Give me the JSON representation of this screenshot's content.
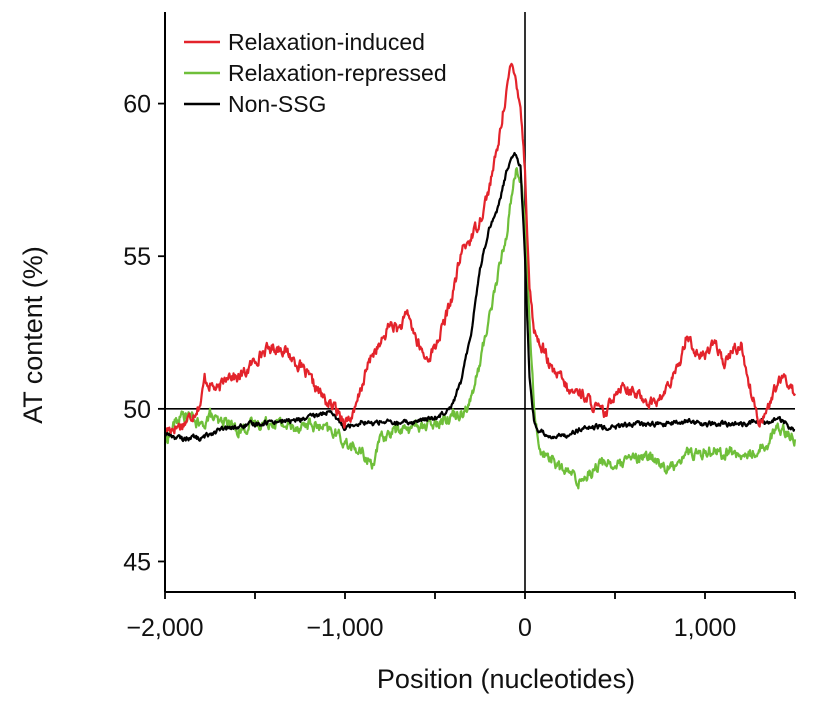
{
  "chart_data": {
    "type": "line",
    "title": "",
    "xlabel": "Position (nucleotides)",
    "ylabel": "AT content (%)",
    "xlim": [
      -2000,
      1500
    ],
    "ylim": [
      44,
      63
    ],
    "x_ticks": [
      -2000,
      -1500,
      -1000,
      -500,
      0,
      500,
      1000,
      1500
    ],
    "x_tick_labels": [
      {
        "value": -2000,
        "label": "−2,000"
      },
      {
        "value": -1000,
        "label": "−1,000"
      },
      {
        "value": 0,
        "label": "0"
      },
      {
        "value": 1000,
        "label": "1,000"
      }
    ],
    "y_ticks": [
      45,
      50,
      55,
      60
    ],
    "y_tick_labels": [
      "45",
      "50",
      "55",
      "60"
    ],
    "reference_lines": {
      "horizontal": 50,
      "vertical": 0
    },
    "legend_position": "top-left",
    "series": [
      {
        "name": "Relaxation-induced",
        "color": "#e3232b",
        "x": [
          -2000,
          -1900,
          -1850,
          -1800,
          -1780,
          -1750,
          -1700,
          -1650,
          -1600,
          -1550,
          -1500,
          -1450,
          -1400,
          -1350,
          -1300,
          -1250,
          -1200,
          -1150,
          -1100,
          -1050,
          -1000,
          -950,
          -900,
          -850,
          -800,
          -750,
          -700,
          -650,
          -600,
          -550,
          -500,
          -450,
          -400,
          -350,
          -300,
          -250,
          -200,
          -150,
          -100,
          -75,
          -50,
          -25,
          0,
          25,
          50,
          75,
          100,
          150,
          200,
          250,
          300,
          350,
          400,
          450,
          500,
          550,
          600,
          650,
          700,
          750,
          800,
          850,
          900,
          950,
          1000,
          1050,
          1100,
          1150,
          1200,
          1250,
          1300,
          1350,
          1400,
          1450,
          1500
        ],
        "values": [
          49.3,
          49.5,
          49.8,
          50.2,
          51.0,
          50.8,
          50.6,
          51.2,
          51.0,
          51.2,
          51.6,
          51.9,
          52.0,
          52.0,
          51.7,
          51.4,
          51.0,
          50.6,
          50.2,
          50.0,
          49.6,
          49.8,
          50.9,
          51.8,
          52.1,
          52.8,
          52.6,
          53.1,
          52.2,
          51.6,
          52.0,
          52.8,
          53.8,
          55.2,
          55.6,
          56.2,
          57.2,
          58.6,
          60.6,
          61.2,
          60.8,
          60.0,
          57.8,
          54.0,
          52.6,
          52.2,
          52.0,
          51.2,
          51.0,
          50.5,
          50.6,
          50.3,
          50.0,
          49.8,
          50.6,
          50.8,
          50.5,
          50.4,
          50.2,
          50.3,
          50.8,
          51.3,
          52.5,
          51.8,
          51.7,
          52.3,
          51.4,
          51.9,
          52.1,
          50.7,
          49.6,
          50.0,
          50.8,
          51.0,
          50.5
        ]
      },
      {
        "name": "Relaxation-repressed",
        "color": "#6fbf3a",
        "x": [
          -2000,
          -1950,
          -1900,
          -1850,
          -1800,
          -1750,
          -1700,
          -1650,
          -1600,
          -1500,
          -1400,
          -1300,
          -1200,
          -1100,
          -1050,
          -1000,
          -950,
          -900,
          -850,
          -800,
          -750,
          -700,
          -650,
          -600,
          -550,
          -500,
          -450,
          -400,
          -350,
          -300,
          -250,
          -200,
          -150,
          -100,
          -75,
          -50,
          -25,
          0,
          25,
          50,
          75,
          100,
          150,
          200,
          250,
          300,
          350,
          400,
          450,
          500,
          550,
          600,
          650,
          700,
          750,
          800,
          850,
          900,
          950,
          1000,
          1050,
          1100,
          1150,
          1200,
          1250,
          1300,
          1350,
          1400,
          1450,
          1500
        ],
        "values": [
          48.9,
          49.5,
          49.8,
          49.7,
          49.4,
          49.8,
          49.5,
          49.6,
          49.3,
          49.5,
          49.6,
          49.4,
          49.5,
          49.3,
          49.2,
          48.9,
          48.7,
          48.5,
          48.2,
          49.0,
          49.2,
          49.4,
          49.3,
          49.5,
          49.4,
          49.6,
          49.7,
          49.8,
          49.9,
          50.3,
          51.5,
          53.0,
          54.4,
          55.8,
          57.0,
          57.8,
          57.6,
          56.0,
          52.8,
          50.2,
          48.8,
          48.5,
          48.4,
          48.0,
          47.9,
          47.6,
          47.9,
          48.1,
          48.3,
          48.1,
          48.2,
          48.4,
          48.3,
          48.5,
          48.2,
          48.0,
          48.3,
          48.6,
          48.5,
          48.6,
          48.7,
          48.5,
          48.6,
          48.4,
          48.5,
          48.7,
          48.9,
          49.4,
          49.3,
          49.0
        ]
      },
      {
        "name": "Non-SSG",
        "color": "#000000",
        "x": [
          -2000,
          -1950,
          -1900,
          -1850,
          -1800,
          -1750,
          -1700,
          -1600,
          -1500,
          -1400,
          -1300,
          -1200,
          -1150,
          -1100,
          -1050,
          -1000,
          -950,
          -900,
          -850,
          -800,
          -700,
          -600,
          -500,
          -450,
          -400,
          -350,
          -300,
          -250,
          -200,
          -150,
          -100,
          -75,
          -50,
          -25,
          0,
          25,
          50,
          75,
          100,
          150,
          200,
          250,
          300,
          400,
          500,
          600,
          700,
          800,
          900,
          1000,
          1100,
          1200,
          1300,
          1350,
          1400,
          1450,
          1500
        ],
        "values": [
          49.2,
          49.1,
          49.0,
          49.1,
          49.0,
          49.2,
          49.3,
          49.4,
          49.5,
          49.6,
          49.6,
          49.7,
          49.8,
          49.9,
          49.7,
          49.4,
          49.5,
          49.6,
          49.5,
          49.6,
          49.5,
          49.6,
          49.7,
          49.9,
          50.2,
          51.0,
          52.5,
          54.6,
          55.9,
          56.6,
          57.8,
          58.3,
          58.4,
          57.9,
          55.0,
          51.0,
          49.6,
          49.3,
          49.2,
          49.1,
          49.1,
          49.2,
          49.3,
          49.4,
          49.4,
          49.5,
          49.5,
          49.5,
          49.6,
          49.5,
          49.5,
          49.5,
          49.6,
          49.5,
          49.7,
          49.5,
          49.3
        ]
      }
    ]
  }
}
